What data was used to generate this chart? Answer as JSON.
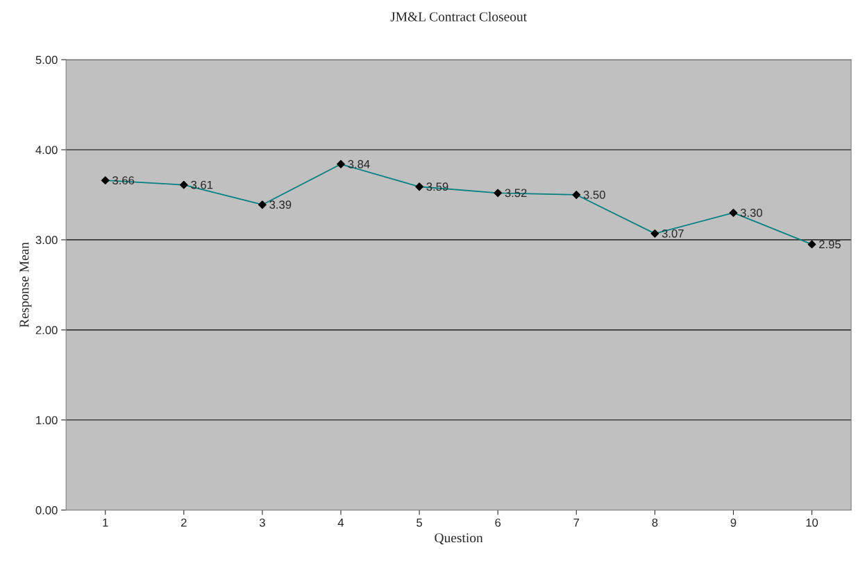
{
  "chart_data": {
    "type": "line",
    "title": "JM&L Contract Closeout",
    "xlabel": "Question",
    "ylabel": "Response Mean",
    "categories": [
      "1",
      "2",
      "3",
      "4",
      "5",
      "6",
      "7",
      "8",
      "9",
      "10"
    ],
    "series": [
      {
        "color": "#008080",
        "values": [
          3.66,
          3.61,
          3.39,
          3.84,
          3.59,
          3.52,
          3.5,
          3.07,
          3.3,
          2.95
        ]
      }
    ],
    "value_labels": [
      "3.66",
      "3.61",
      "3.39",
      "3.84",
      "3.59",
      "3.52",
      "3.50",
      "3.07",
      "3.30",
      "2.95"
    ],
    "ylim": [
      0,
      5
    ],
    "yticks": [
      {
        "value": 0,
        "label": "0.00"
      },
      {
        "value": 1,
        "label": "1.00"
      },
      {
        "value": 2,
        "label": "2.00"
      },
      {
        "value": 3,
        "label": "3.00"
      },
      {
        "value": 4,
        "label": "4.00"
      },
      {
        "value": 5,
        "label": "5.00"
      }
    ],
    "grid": "y",
    "marker": "diamond",
    "legend": false
  }
}
